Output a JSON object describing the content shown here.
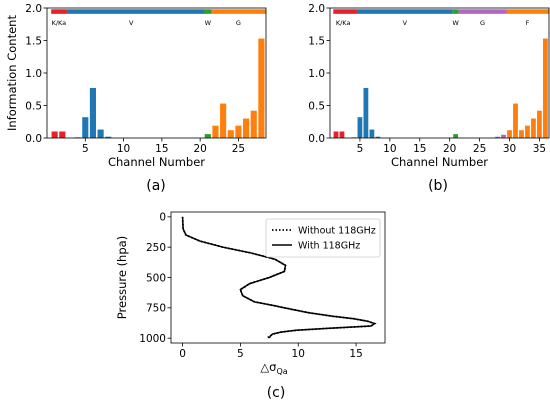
{
  "colors": {
    "kka": "#e8202a",
    "v": "#1f77b4",
    "w": "#2ca02c",
    "g": "#ff7f0e",
    "g_b": "#b565c4",
    "f": "#ff7f0e",
    "line": "#000000"
  },
  "chart_data": [
    {
      "type": "bar",
      "panel_label": "(a)",
      "xlabel": "Channel Number",
      "ylabel": "Information Content",
      "xlim": [
        0,
        28.6
      ],
      "ylim": [
        0,
        2.0
      ],
      "xticks": [
        5,
        10,
        15,
        20,
        25
      ],
      "yticks": [
        0.0,
        0.5,
        1.0,
        1.5,
        2.0
      ],
      "ytick_labels": [
        "0.0",
        "0.5",
        "1.0",
        "1.5",
        "2.0"
      ],
      "bands": [
        {
          "label": "K/Ka",
          "from": 0.55,
          "to": 2.6,
          "color": "kka",
          "text_at": 1.55
        },
        {
          "label": "V",
          "from": 2.6,
          "to": 20.5,
          "color": "v",
          "text_at": 11.0
        },
        {
          "label": "W",
          "from": 20.5,
          "to": 21.5,
          "color": "w",
          "text_at": 21.0
        },
        {
          "label": "G",
          "from": 21.5,
          "to": 28.6,
          "color": "g",
          "text_at": 25.0
        }
      ],
      "channels": [
        1,
        2,
        3,
        4,
        5,
        6,
        7,
        8,
        9,
        10,
        11,
        12,
        13,
        14,
        15,
        16,
        17,
        18,
        19,
        20,
        21,
        22,
        23,
        24,
        25,
        26,
        27,
        28
      ],
      "values": [
        0.1,
        0.1,
        0.0,
        0.01,
        0.32,
        0.77,
        0.13,
        0.02,
        0.0,
        0.0,
        0.0,
        0.0,
        0.0,
        0.0,
        0.0,
        0.0,
        0.0,
        0.0,
        0.0,
        0.0,
        0.06,
        0.19,
        0.53,
        0.12,
        0.19,
        0.3,
        0.42,
        1.53
      ],
      "bar_colors": [
        "kka",
        "kka",
        "kka",
        "v",
        "v",
        "v",
        "v",
        "v",
        "v",
        "v",
        "v",
        "v",
        "v",
        "v",
        "v",
        "v",
        "v",
        "v",
        "v",
        "v",
        "w",
        "g",
        "g",
        "g",
        "g",
        "g",
        "g",
        "g"
      ]
    },
    {
      "type": "bar",
      "panel_label": "(b)",
      "xlabel": "Channel Number",
      "ylabel": "",
      "xlim": [
        0,
        36.6
      ],
      "ylim": [
        0,
        2.0
      ],
      "xticks": [
        5,
        10,
        15,
        20,
        25,
        30,
        35
      ],
      "yticks": [
        0.0,
        0.5,
        1.0,
        1.5,
        2.0
      ],
      "ytick_labels": [
        "0.0",
        "0.5",
        "1.0",
        "1.5",
        "2.0"
      ],
      "bands": [
        {
          "label": "K/Ka",
          "from": 0.55,
          "to": 4.5,
          "color": "kka",
          "text_at": 2.2
        },
        {
          "label": "V",
          "from": 4.5,
          "to": 20.5,
          "color": "v",
          "text_at": 12.5
        },
        {
          "label": "W",
          "from": 20.5,
          "to": 21.5,
          "color": "w",
          "text_at": 21.0
        },
        {
          "label": "G",
          "from": 21.5,
          "to": 29.5,
          "color": "g_b",
          "text_at": 25.5
        },
        {
          "label": "F",
          "from": 29.5,
          "to": 36.6,
          "color": "f",
          "text_at": 33.0
        }
      ],
      "channels": [
        1,
        2,
        3,
        4,
        5,
        6,
        7,
        8,
        9,
        10,
        11,
        12,
        13,
        14,
        15,
        16,
        17,
        18,
        19,
        20,
        21,
        22,
        23,
        24,
        25,
        26,
        27,
        28,
        29,
        30,
        31,
        32,
        33,
        34,
        35,
        36
      ],
      "values": [
        0.1,
        0.1,
        0.0,
        0.01,
        0.32,
        0.77,
        0.13,
        0.02,
        0.0,
        0.0,
        0.0,
        0.0,
        0.0,
        0.0,
        0.0,
        0.0,
        0.0,
        0.0,
        0.0,
        0.0,
        0.06,
        0.0,
        0.0,
        0.0,
        0.0,
        0.0,
        0.0,
        0.02,
        0.05,
        0.12,
        0.53,
        0.12,
        0.19,
        0.3,
        0.42,
        1.53
      ],
      "bar_colors": [
        "kka",
        "kka",
        "kka",
        "v",
        "v",
        "v",
        "v",
        "v",
        "v",
        "v",
        "v",
        "v",
        "v",
        "v",
        "v",
        "v",
        "v",
        "v",
        "v",
        "v",
        "w",
        "g_b",
        "g_b",
        "g_b",
        "g_b",
        "g_b",
        "g_b",
        "g_b",
        "g_b",
        "f",
        "f",
        "f",
        "f",
        "f",
        "f",
        "f"
      ]
    },
    {
      "type": "line",
      "panel_label": "(c)",
      "xlabel": "△σ",
      "xlabel_sub": "Qa",
      "ylabel": "Pressure (hpa)",
      "xlim": [
        -1,
        17.5
      ],
      "ylim": [
        1040,
        -40
      ],
      "y_inverted": true,
      "xticks": [
        0,
        5,
        10,
        15
      ],
      "yticks": [
        0,
        250,
        500,
        750,
        1000
      ],
      "legend": "top-right",
      "series": [
        {
          "name": "Without 118GHz",
          "style": "dotted",
          "x": [
            0.0,
            0.05,
            0.3,
            1.5,
            3.5,
            6.0,
            8.0,
            8.9,
            8.8,
            7.5,
            5.8,
            5.0,
            5.2,
            6.2,
            7.8,
            9.3,
            10.9,
            13.0,
            14.8,
            16.0,
            16.6,
            16.3,
            12.5,
            9.8,
            8.5,
            7.9,
            7.6,
            7.3
          ],
          "y": [
            0,
            100,
            150,
            200,
            250,
            300,
            350,
            400,
            450,
            500,
            550,
            600,
            650,
            700,
            730,
            760,
            790,
            820,
            840,
            860,
            880,
            900,
            920,
            935,
            950,
            965,
            980,
            1000
          ]
        },
        {
          "name": "With 118GHz",
          "style": "solid",
          "x": [
            0.0,
            0.05,
            0.3,
            1.5,
            3.5,
            6.0,
            8.0,
            8.9,
            8.8,
            7.5,
            5.8,
            5.0,
            5.2,
            6.2,
            7.8,
            9.3,
            10.9,
            13.0,
            14.8,
            16.0,
            16.6,
            16.3,
            12.5,
            9.8,
            8.5,
            7.8,
            7.6,
            7.5
          ],
          "y": [
            0,
            100,
            150,
            200,
            250,
            300,
            350,
            400,
            450,
            500,
            550,
            600,
            650,
            700,
            730,
            760,
            790,
            820,
            840,
            860,
            880,
            900,
            920,
            935,
            950,
            965,
            980,
            1000
          ]
        }
      ]
    }
  ]
}
